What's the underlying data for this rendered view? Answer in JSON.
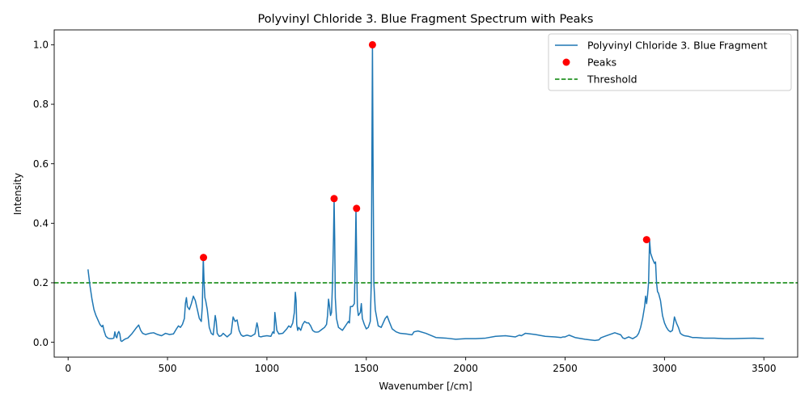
{
  "chart_data": {
    "type": "line",
    "title": "Polyvinyl Chloride 3. Blue Fragment Spectrum with Peaks",
    "xlabel": "Wavenumber [/cm]",
    "ylabel": "Intensity",
    "xlim": [
      -70,
      3670
    ],
    "ylim": [
      -0.05,
      1.05
    ],
    "xticks": [
      0,
      500,
      1000,
      1500,
      2000,
      2500,
      3000,
      3500
    ],
    "xtick_labels": [
      "0",
      "500",
      "1000",
      "1500",
      "2000",
      "2500",
      "3000",
      "3500"
    ],
    "yticks": [
      0.0,
      0.2,
      0.4,
      0.6,
      0.8,
      1.0
    ],
    "ytick_labels": [
      "0.0",
      "0.2",
      "0.4",
      "0.6",
      "0.8",
      "1.0"
    ],
    "grid": false,
    "legend_position": "top-right",
    "colors": {
      "spectrum": "#1f77b4",
      "peaks": "#ff0000",
      "threshold": "#008000"
    },
    "series": [
      {
        "name": "Polyvinyl Chloride 3. Blue Fragment",
        "kind": "line",
        "x": [
          100,
          110,
          120,
          130,
          140,
          150,
          160,
          170,
          175,
          180,
          190,
          200,
          210,
          220,
          230,
          235,
          240,
          245,
          250,
          255,
          260,
          265,
          270,
          280,
          290,
          300,
          320,
          340,
          355,
          365,
          375,
          390,
          410,
          430,
          450,
          470,
          490,
          510,
          530,
          545,
          555,
          565,
          575,
          585,
          590,
          595,
          600,
          610,
          620,
          630,
          640,
          650,
          660,
          670,
          675,
          680,
          684,
          688,
          692,
          700,
          710,
          720,
          730,
          740,
          745,
          750,
          760,
          770,
          780,
          800,
          820,
          830,
          840,
          850,
          860,
          870,
          880,
          900,
          920,
          940,
          950,
          955,
          960,
          970,
          980,
          1000,
          1020,
          1030,
          1036,
          1040,
          1050,
          1060,
          1080,
          1100,
          1110,
          1120,
          1130,
          1138,
          1143,
          1147,
          1150,
          1155,
          1160,
          1170,
          1180,
          1190,
          1200,
          1210,
          1220,
          1230,
          1240,
          1250,
          1260,
          1270,
          1280,
          1290,
          1300,
          1305,
          1310,
          1315,
          1320,
          1325,
          1330,
          1335,
          1338,
          1341,
          1344,
          1350,
          1360,
          1370,
          1380,
          1390,
          1400,
          1410,
          1415,
          1420,
          1425,
          1430,
          1440,
          1445,
          1448,
          1451,
          1455,
          1460,
          1470,
          1475,
          1480,
          1485,
          1490,
          1500,
          1510,
          1520,
          1525,
          1528,
          1531,
          1534,
          1538,
          1545,
          1560,
          1575,
          1585,
          1595,
          1605,
          1615,
          1630,
          1650,
          1670,
          1700,
          1720,
          1730,
          1740,
          1760,
          1800,
          1850,
          1900,
          1950,
          2000,
          2050,
          2100,
          2150,
          2200,
          2250,
          2270,
          2280,
          2300,
          2350,
          2400,
          2450,
          2480,
          2490,
          2500,
          2520,
          2550,
          2600,
          2650,
          2670,
          2680,
          2700,
          2750,
          2780,
          2790,
          2800,
          2820,
          2840,
          2860,
          2870,
          2880,
          2890,
          2900,
          2905,
          2910,
          2915,
          2920,
          2925,
          2930,
          2940,
          2950,
          2955,
          2960,
          2965,
          2970,
          2980,
          2990,
          3000,
          3010,
          3020,
          3030,
          3040,
          3045,
          3050,
          3055,
          3060,
          3070,
          3080,
          3090,
          3100,
          3120,
          3140,
          3160,
          3200,
          3250,
          3300,
          3350,
          3400,
          3450,
          3500
        ],
        "y": [
          0.245,
          0.19,
          0.145,
          0.11,
          0.09,
          0.075,
          0.06,
          0.052,
          0.057,
          0.04,
          0.02,
          0.014,
          0.012,
          0.012,
          0.014,
          0.035,
          0.02,
          0.015,
          0.03,
          0.036,
          0.028,
          0.005,
          0.003,
          0.008,
          0.012,
          0.014,
          0.028,
          0.046,
          0.058,
          0.04,
          0.03,
          0.026,
          0.03,
          0.032,
          0.026,
          0.022,
          0.03,
          0.026,
          0.028,
          0.045,
          0.055,
          0.05,
          0.06,
          0.08,
          0.13,
          0.15,
          0.12,
          0.11,
          0.13,
          0.155,
          0.14,
          0.11,
          0.08,
          0.07,
          0.12,
          0.285,
          0.2,
          0.15,
          0.14,
          0.11,
          0.05,
          0.03,
          0.025,
          0.09,
          0.07,
          0.03,
          0.02,
          0.022,
          0.03,
          0.018,
          0.03,
          0.085,
          0.07,
          0.075,
          0.04,
          0.025,
          0.02,
          0.024,
          0.02,
          0.028,
          0.065,
          0.05,
          0.02,
          0.018,
          0.02,
          0.022,
          0.02,
          0.035,
          0.03,
          0.1,
          0.04,
          0.028,
          0.03,
          0.045,
          0.055,
          0.05,
          0.065,
          0.1,
          0.168,
          0.14,
          0.06,
          0.04,
          0.05,
          0.04,
          0.06,
          0.07,
          0.065,
          0.065,
          0.055,
          0.04,
          0.035,
          0.034,
          0.035,
          0.04,
          0.045,
          0.05,
          0.06,
          0.09,
          0.145,
          0.12,
          0.09,
          0.1,
          0.2,
          0.35,
          0.483,
          0.35,
          0.15,
          0.08,
          0.05,
          0.045,
          0.04,
          0.05,
          0.06,
          0.07,
          0.065,
          0.12,
          0.12,
          0.12,
          0.13,
          0.3,
          0.45,
          0.3,
          0.12,
          0.09,
          0.1,
          0.13,
          0.08,
          0.07,
          0.06,
          0.045,
          0.05,
          0.07,
          0.2,
          0.6,
          1.0,
          0.6,
          0.2,
          0.11,
          0.055,
          0.05,
          0.065,
          0.08,
          0.088,
          0.07,
          0.045,
          0.035,
          0.03,
          0.028,
          0.026,
          0.025,
          0.035,
          0.038,
          0.03,
          0.016,
          0.014,
          0.01,
          0.012,
          0.012,
          0.014,
          0.02,
          0.022,
          0.018,
          0.024,
          0.022,
          0.03,
          0.026,
          0.02,
          0.018,
          0.016,
          0.018,
          0.018,
          0.024,
          0.016,
          0.01,
          0.006,
          0.008,
          0.015,
          0.02,
          0.032,
          0.025,
          0.015,
          0.012,
          0.018,
          0.012,
          0.02,
          0.03,
          0.05,
          0.08,
          0.12,
          0.155,
          0.13,
          0.16,
          0.2,
          0.345,
          0.3,
          0.28,
          0.265,
          0.27,
          0.2,
          0.17,
          0.165,
          0.14,
          0.09,
          0.065,
          0.05,
          0.04,
          0.035,
          0.04,
          0.06,
          0.085,
          0.075,
          0.065,
          0.05,
          0.03,
          0.025,
          0.022,
          0.02,
          0.016,
          0.016,
          0.014,
          0.014,
          0.012,
          0.012,
          0.013,
          0.014,
          0.012
        ]
      },
      {
        "name": "Peaks",
        "kind": "scatter",
        "x": [
          681,
          1338,
          1451,
          1531,
          2910
        ],
        "y": [
          0.285,
          0.483,
          0.45,
          1.0,
          0.345
        ]
      },
      {
        "name": "Threshold",
        "kind": "hline",
        "y": 0.2
      }
    ]
  }
}
